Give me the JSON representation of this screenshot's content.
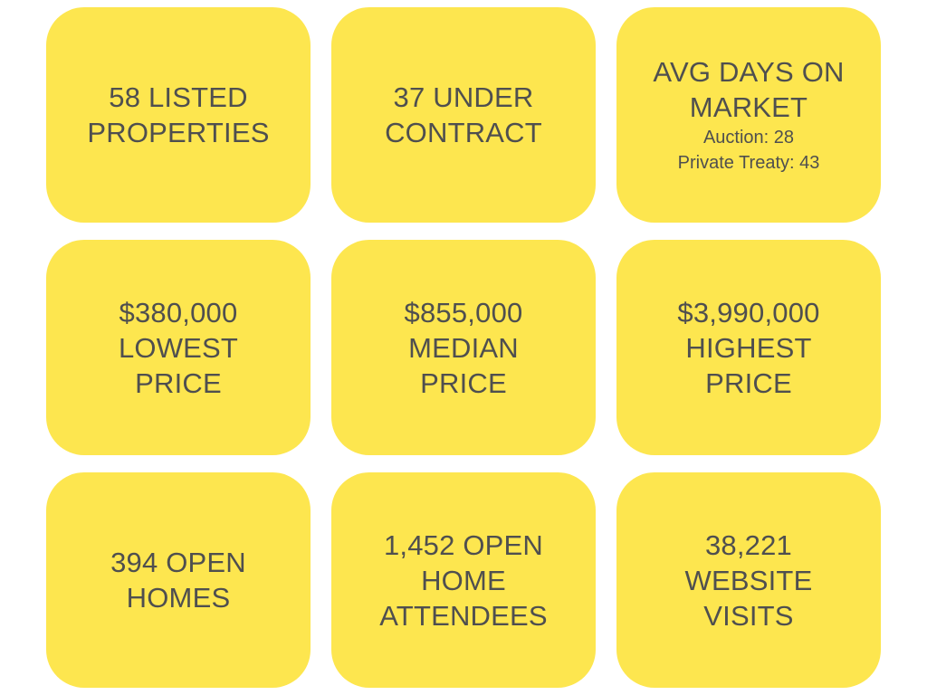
{
  "tiles": {
    "listed": {
      "line1": "58 LISTED",
      "line2": "PROPERTIES"
    },
    "under_contract": {
      "line1": "37 UNDER",
      "line2": "CONTRACT"
    },
    "avg_days": {
      "line1": "AVG DAYS ON",
      "line2": "MARKET",
      "auction": "Auction: 28",
      "private_treaty": "Private Treaty: 43"
    },
    "lowest_price": {
      "line1": "$380,000",
      "line2": "LOWEST",
      "line3": "PRICE"
    },
    "median_price": {
      "line1": "$855,000",
      "line2": "MEDIAN",
      "line3": "PRICE"
    },
    "highest_price": {
      "line1": "$3,990,000",
      "line2": "HIGHEST",
      "line3": "PRICE"
    },
    "open_homes": {
      "line1": "394 OPEN",
      "line2": "HOMES"
    },
    "open_home_attendees": {
      "line1": "1,452 OPEN",
      "line2": "HOME",
      "line3": "ATTENDEES"
    },
    "website_visits": {
      "line1": "38,221",
      "line2": "WEBSITE",
      "line3": "VISITS"
    }
  },
  "colors": {
    "tile_background": "#fde64f",
    "text": "#4f4f4f",
    "page_background": "#ffffff"
  }
}
